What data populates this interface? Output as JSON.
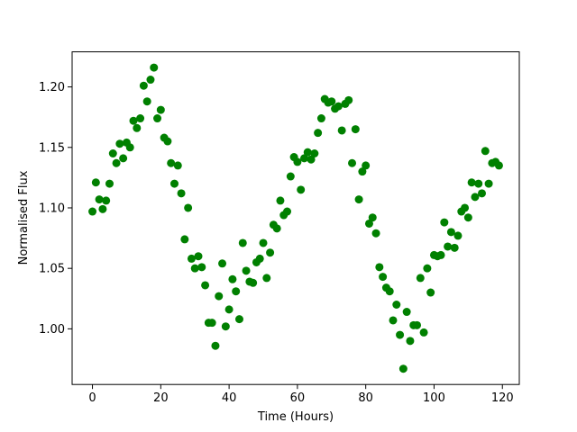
{
  "chart_data": {
    "type": "scatter",
    "xlabel": "Time (Hours)",
    "ylabel": "Normalised Flux",
    "color": "#008000",
    "xlim": [
      -5.95,
      124.95
    ],
    "ylim": [
      0.954,
      1.229
    ],
    "xticks": [
      0,
      20,
      40,
      60,
      80,
      100,
      120
    ],
    "yticks": [
      {
        "value": 1.0,
        "label": "1.00"
      },
      1.05,
      {
        "value": 1.1,
        "label": "1.10"
      },
      1.15,
      {
        "value": 1.2,
        "label": "1.20"
      }
    ],
    "grid": false,
    "x": [
      0,
      1,
      2,
      3,
      4,
      5,
      6,
      7,
      8,
      9,
      10,
      11,
      12,
      13,
      14,
      15,
      16,
      17,
      18,
      19,
      20,
      21,
      22,
      23,
      24,
      25,
      26,
      27,
      28,
      29,
      30,
      31,
      32,
      33,
      34,
      35,
      36,
      37,
      38,
      39,
      40,
      41,
      42,
      43,
      44,
      45,
      46,
      47,
      48,
      49,
      50,
      51,
      52,
      53,
      54,
      55,
      56,
      57,
      58,
      59,
      60,
      61,
      62,
      63,
      64,
      65,
      66,
      67,
      68,
      69,
      70,
      71,
      72,
      73,
      74,
      75,
      76,
      77,
      78,
      79,
      80,
      81,
      82,
      83,
      84,
      85,
      86,
      87,
      88,
      89,
      90,
      91,
      92,
      93,
      94,
      95,
      96,
      97,
      98,
      99,
      100,
      101,
      102,
      103,
      104,
      105,
      106,
      107,
      108,
      109,
      110,
      111,
      112,
      113,
      114,
      115,
      116,
      117,
      118,
      119
    ],
    "values": [
      1.097,
      1.121,
      1.107,
      1.099,
      1.106,
      1.12,
      1.145,
      1.137,
      1.153,
      1.141,
      1.154,
      1.15,
      1.172,
      1.166,
      1.174,
      1.201,
      1.188,
      1.206,
      1.216,
      1.174,
      1.181,
      1.158,
      1.155,
      1.137,
      1.12,
      1.135,
      1.112,
      1.074,
      1.1,
      1.058,
      1.05,
      1.06,
      1.051,
      1.036,
      1.005,
      1.005,
      0.986,
      1.027,
      1.054,
      1.002,
      1.016,
      1.041,
      1.031,
      1.008,
      1.071,
      1.048,
      1.039,
      1.038,
      1.055,
      1.058,
      1.071,
      1.042,
      1.063,
      1.086,
      1.083,
      1.106,
      1.094,
      1.097,
      1.126,
      1.142,
      1.138,
      1.115,
      1.141,
      1.146,
      1.14,
      1.145,
      1.162,
      1.174,
      1.19,
      1.187,
      1.188,
      1.182,
      1.184,
      1.164,
      1.186,
      1.189,
      1.137,
      1.165,
      1.107,
      1.13,
      1.135,
      1.087,
      1.092,
      1.079,
      1.051,
      1.043,
      1.034,
      1.031,
      1.007,
      1.02,
      0.995,
      0.967,
      1.014,
      0.99,
      1.003,
      1.003,
      1.042,
      0.997,
      1.05,
      1.03,
      1.061,
      1.06,
      1.061,
      1.088,
      1.068,
      1.08,
      1.067,
      1.077,
      1.097,
      1.1,
      1.092,
      1.121,
      1.109,
      1.12,
      1.112,
      1.147,
      1.12,
      1.137,
      1.138,
      1.135
    ]
  }
}
